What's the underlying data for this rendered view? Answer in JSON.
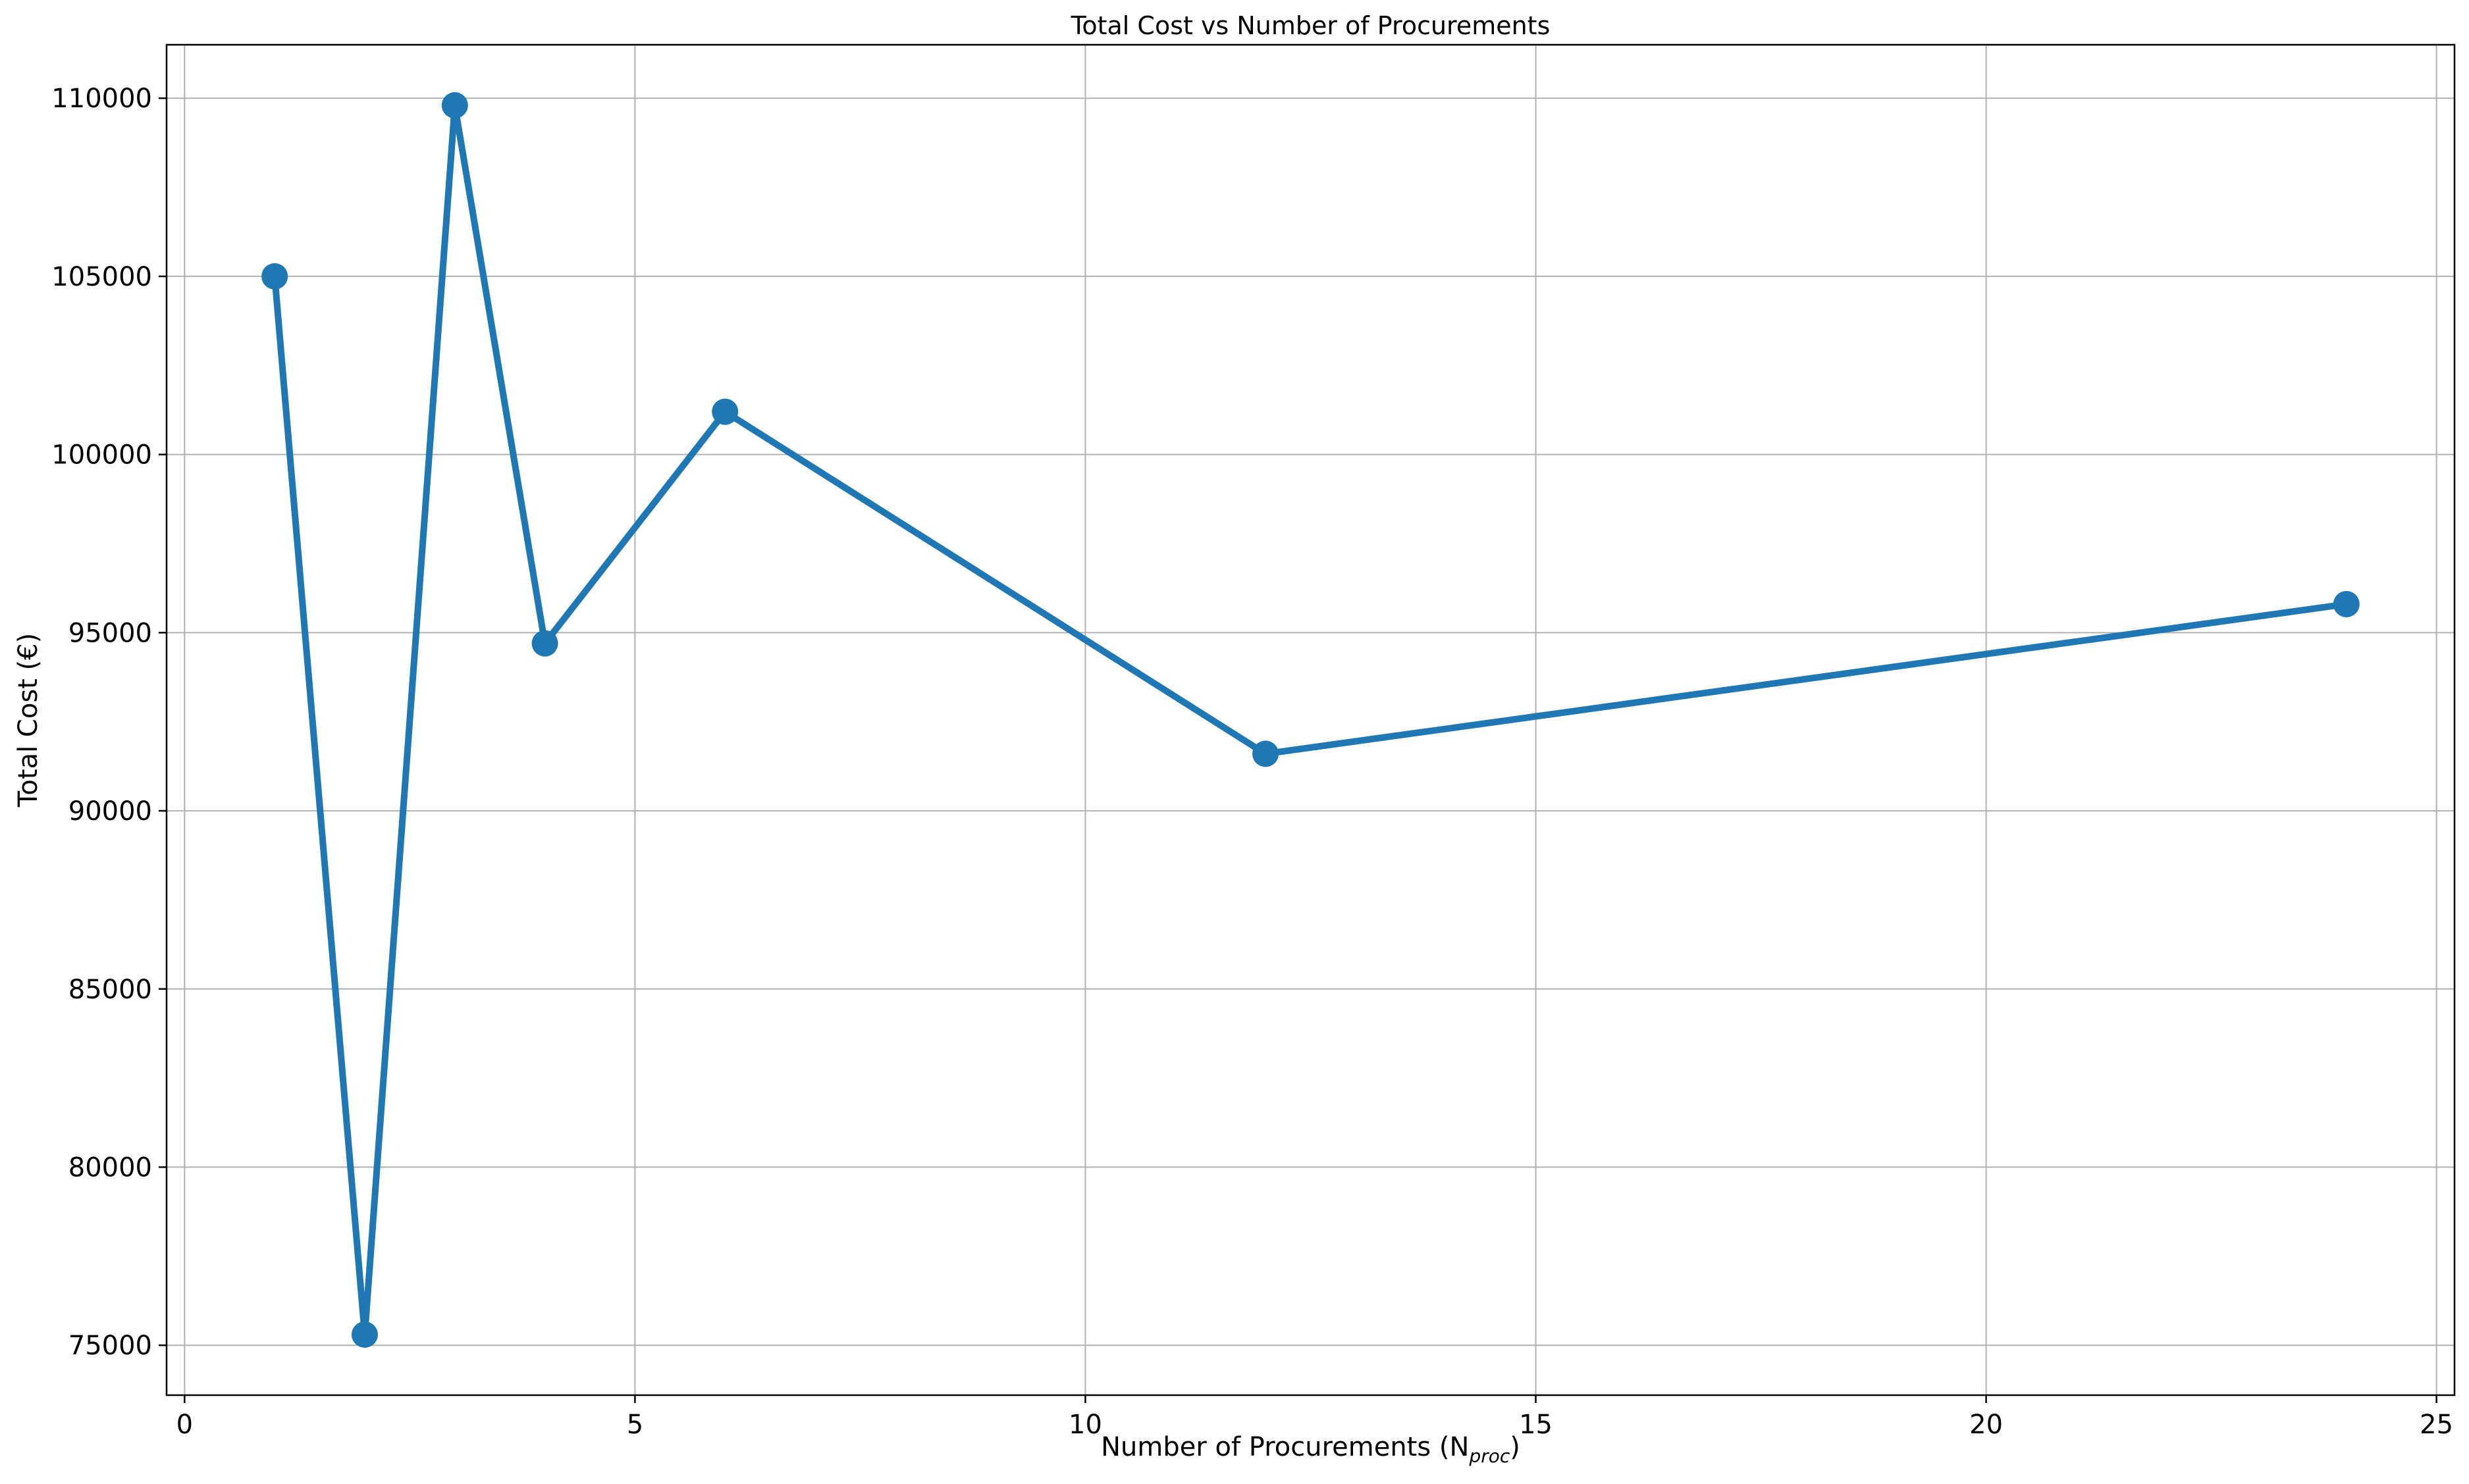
{
  "chart_data": {
    "type": "line",
    "title": "Total Cost vs Number of Procurements",
    "xlabel": "Number of Procurements (N",
    "xlabel_subscript": "proc",
    "xlabel_suffix": ")",
    "ylabel": "Total Cost (€)",
    "xlim": [
      -0.2,
      25.2
    ],
    "ylim": [
      73600,
      111500
    ],
    "xticks": [
      0,
      5,
      10,
      15,
      20,
      25
    ],
    "yticks": [
      75000,
      80000,
      85000,
      90000,
      95000,
      100000,
      105000,
      110000
    ],
    "grid": true,
    "color": "#1f77b4",
    "series": [
      {
        "x": [
          1,
          2,
          3,
          4,
          6,
          12,
          24
        ],
        "y": [
          105000,
          75300,
          109800,
          94700,
          101200,
          91600,
          95800
        ]
      }
    ]
  }
}
